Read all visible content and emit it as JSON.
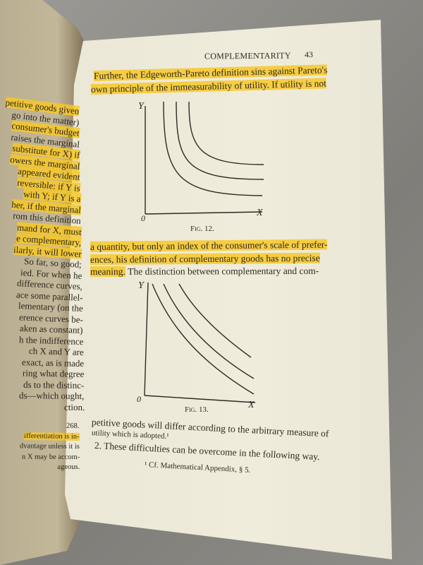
{
  "left_page": {
    "lines": [
      {
        "text": "petitive goods given",
        "hl": true
      },
      {
        "text": "go into the matter)",
        "hl": false
      },
      {
        "text": "consumer's budget",
        "hl": true
      },
      {
        "text": "raises the marginal",
        "hl": false
      },
      {
        "text": "substitute for X) if",
        "hl": true
      },
      {
        "text": "owers the marginal",
        "hl": true
      },
      {
        "text": "appeared evident",
        "hl": true
      },
      {
        "text": "reversible: if Y is",
        "hl": true
      },
      {
        "text": "with Y; if Y is a",
        "hl": true
      },
      {
        "text": "her, if the marginal",
        "hl": true
      },
      {
        "text": "rom this definition",
        "hl": false
      },
      {
        "text": "mand for X, must",
        "hl": true
      },
      {
        "text": "e complementary,",
        "hl": true
      },
      {
        "text": "ilarly, it will lower",
        "hl": true
      },
      {
        "text": "So far, so good;",
        "hl": false
      },
      {
        "text": "ied.  For when he",
        "hl": false
      },
      {
        "text": "difference curves,",
        "hl": false
      },
      {
        "text": "ace some parallel-",
        "hl": false
      },
      {
        "text": "lementary (on the",
        "hl": false
      },
      {
        "text": "erence curves be-",
        "hl": false
      },
      {
        "text": "aken as constant)",
        "hl": false
      },
      {
        "text": "h the indifference",
        "hl": false
      },
      {
        "text": "ch X and Y are",
        "hl": false
      },
      {
        "text": "exact, as is made",
        "hl": false
      },
      {
        "text": "ring what degree",
        "hl": false
      },
      {
        "text": "ds to the distinc-",
        "hl": false
      },
      {
        "text": "ds—which ought,",
        "hl": false
      },
      {
        "text": "ction.",
        "hl": false
      }
    ],
    "footnotes": [
      {
        "text": "268.",
        "hl": false
      },
      {
        "text": "ifferentiation is in-",
        "hl": true
      },
      {
        "text": "dvantage unless it is",
        "hl": false
      },
      {
        "text": "n X may be accom-",
        "hl": false
      },
      {
        "text": "ageous.",
        "hl": false
      }
    ]
  },
  "right_page": {
    "running_head": "COMPLEMENTARITY",
    "page_number": "43",
    "para1": [
      "Further, the Edgeworth-Pareto definition sins against Pareto's",
      "own principle of the immeasurability of utility.  If utility is not"
    ],
    "fig12": {
      "caption": "Fig. 12.",
      "y_label": "Y",
      "x_label": "X",
      "origin": "0"
    },
    "para2": [
      "a quantity, but only an index of the consumer's scale of prefer-",
      "ences, his definition of complementary goods has no precise",
      "meaning.",
      "The distinction between complementary and com-"
    ],
    "fig13": {
      "caption": "Fig. 13.",
      "y_label": "Y",
      "x_label": "X",
      "origin": "0"
    },
    "para3": [
      "petitive goods will differ according to the arbitrary measure of",
      "utility which is adopted.¹",
      "2. These difficulties can be overcome in the following way."
    ],
    "footnote": "¹ Cf. Mathematical Appendix, § 5.",
    "highlight_color": "#f7c828"
  }
}
